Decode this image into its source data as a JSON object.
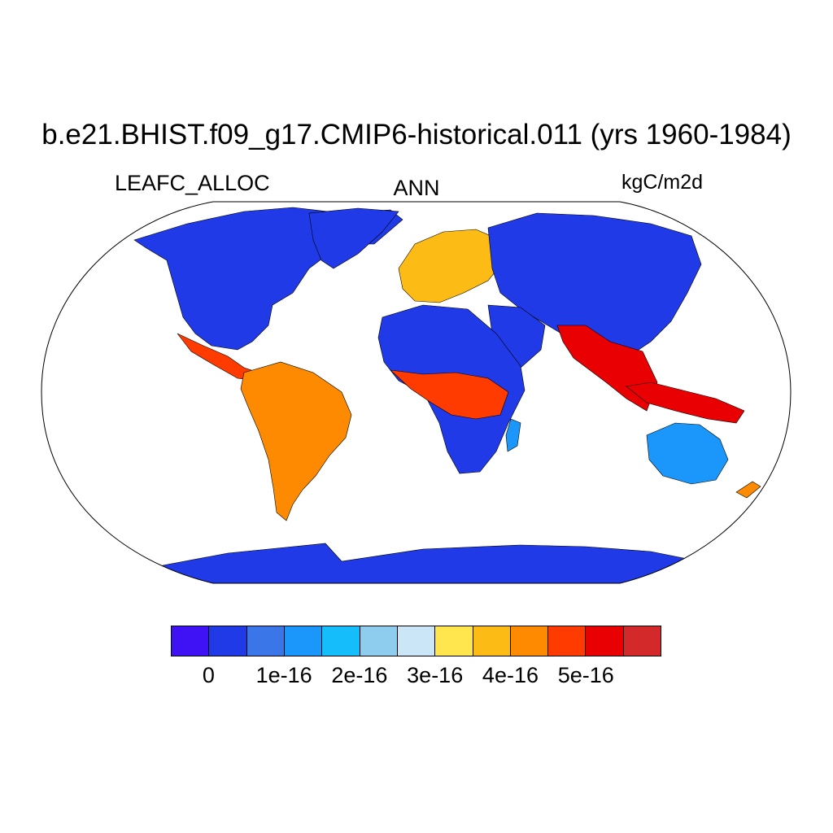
{
  "title": "b.e21.BHIST.f09_g17.CMIP6-historical.011 (yrs 1960-1984)",
  "variable": "LEAFC_ALLOC",
  "season": "ANN",
  "units": "kgC/m2d",
  "colors": {
    "ocean": "#ffffff",
    "coast": "#000000",
    "palette": [
      "#3f11f5",
      "#1f3ae6",
      "#3a76e8",
      "#1b97fb",
      "#16bdfb",
      "#8fcdef",
      "#cbe6f7",
      "#ffe64f",
      "#fdbb15",
      "#fd8a00",
      "#ff3b00",
      "#e80003",
      "#d4292b"
    ]
  },
  "colorbar": {
    "labels": [
      "0",
      "1e-16",
      "2e-16",
      "3e-16",
      "4e-16",
      "5e-16"
    ]
  }
}
